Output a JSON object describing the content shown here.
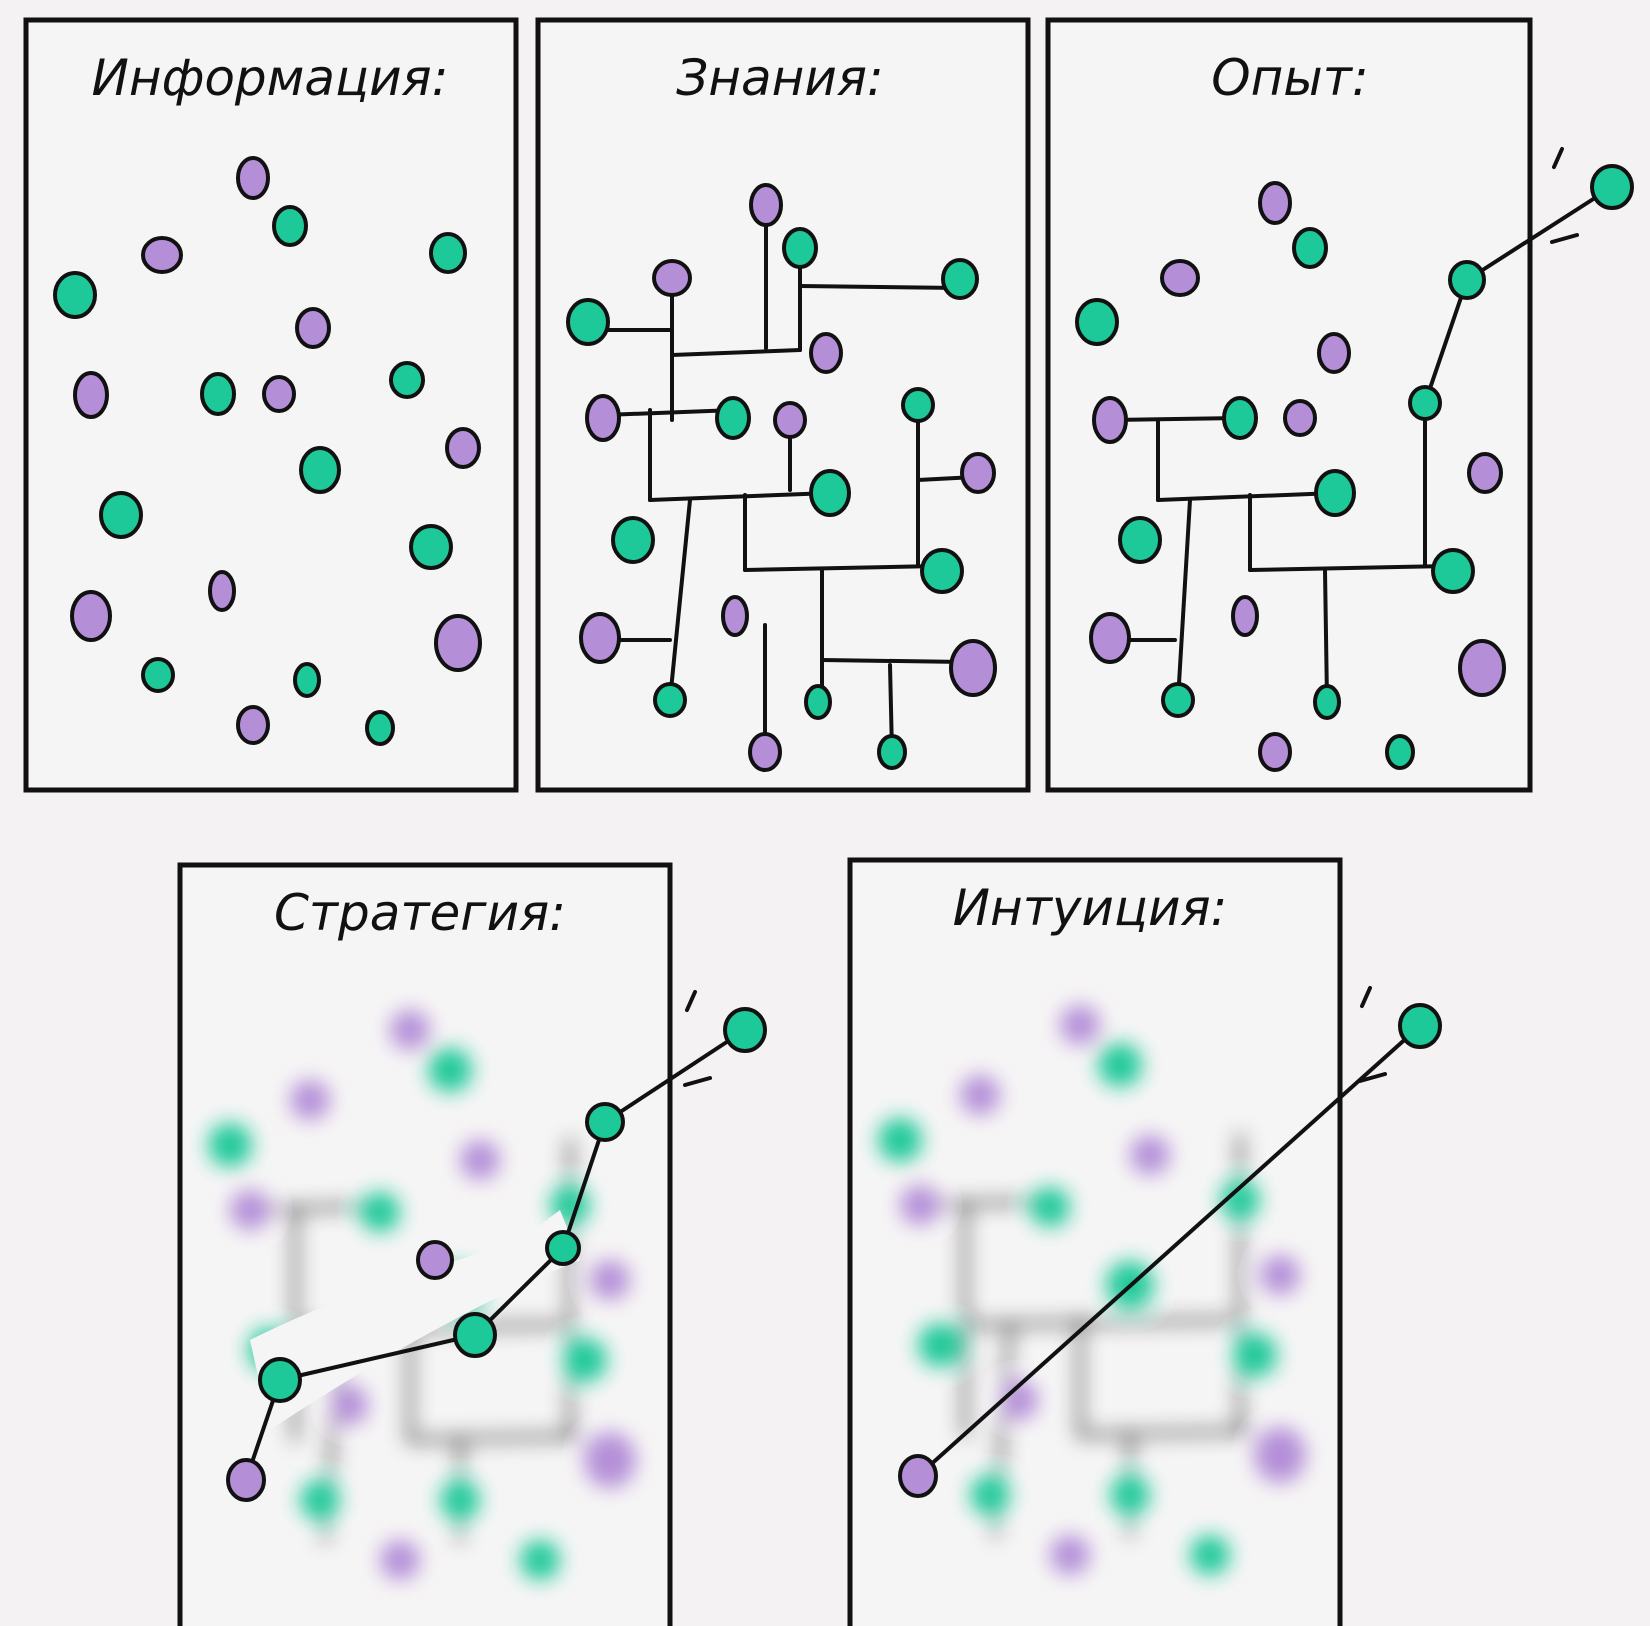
{
  "colors": {
    "background": "#f4f2f3",
    "green_dot": "#1ec999",
    "purple_dot": "#b48fd8",
    "outline": "#111111"
  },
  "panels": [
    {
      "id": "informaciya",
      "title": "Информация:"
    },
    {
      "id": "znaniya",
      "title": "Знания:"
    },
    {
      "id": "opyt",
      "title": "Опыт:"
    },
    {
      "id": "strategiya",
      "title": "Стратегия:"
    },
    {
      "id": "intuiciya",
      "title": "Интуиция:"
    }
  ]
}
